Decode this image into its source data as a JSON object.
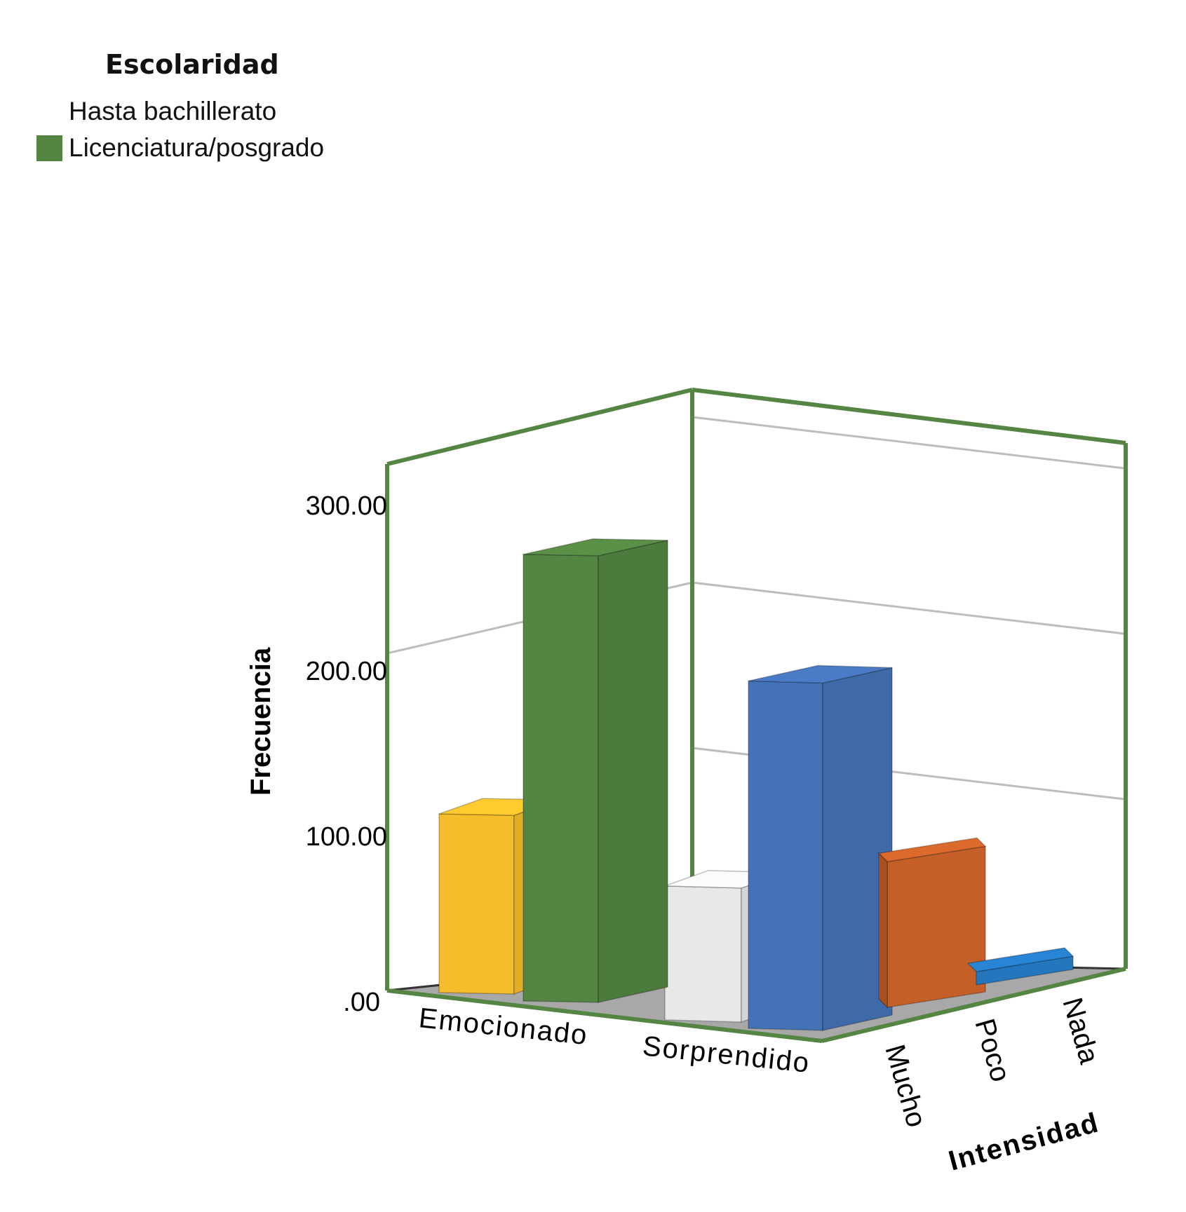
{
  "legend": {
    "title": "Escolaridad",
    "items": [
      {
        "label": "Hasta bachillerato",
        "color": null
      },
      {
        "label": "Licenciatura/posgrado",
        "color": "#548542"
      }
    ]
  },
  "chart_data": {
    "type": "bar",
    "subtype": "3d-bar",
    "ylabel": "Frecuencia",
    "zlabel": "Intensidad",
    "ylim": [
      0,
      300
    ],
    "yticks": [
      ".00",
      "100.00",
      "200.00",
      "300.00"
    ],
    "categories": [
      "Emocionado",
      "Sorprendido"
    ],
    "depth_categories": [
      "Mucho",
      "Poco",
      "Nada"
    ],
    "bars": [
      {
        "category": "Emocionado",
        "group": "Hasta bachillerato",
        "value": 108,
        "color": "#F6BC2B"
      },
      {
        "category": "Emocionado",
        "group": "Licenciatura/posgrado",
        "value": 270,
        "color": "#548542"
      },
      {
        "category": "Sorprendido",
        "group": "Hasta bachillerato",
        "value": 81,
        "color": "#E8E8E8"
      },
      {
        "category": "Sorprendido",
        "group": "Mucho",
        "value": 210,
        "color": "#4472B8"
      },
      {
        "category": "Sorprendido",
        "group": "Poco",
        "value": 88,
        "color": "#C45F27"
      },
      {
        "category": "Sorprendido",
        "group": "Nada",
        "value": 8,
        "color": "#2476BD"
      }
    ],
    "frame_color": "#548542",
    "grid": true
  }
}
